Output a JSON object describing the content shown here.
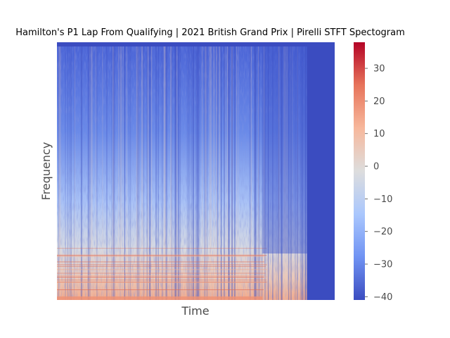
{
  "chart_data": {
    "type": "heatmap",
    "title": "Hamilton's P1 Lap From Qualifying | 2021 British Grand Prix | Pirelli STFT Spectogram",
    "xlabel": "Time",
    "ylabel": "Frequency",
    "x_ticks_shown": false,
    "y_ticks_shown": false,
    "grid": false,
    "colormap": "coolwarm",
    "colorbar": {
      "range": [
        -41,
        38
      ],
      "ticks": [
        38,
        30,
        20,
        10,
        0,
        -10,
        -20,
        -30,
        -40
      ],
      "tick_labels": [
        "",
        "30",
        "20",
        "10",
        "0",
        "−10",
        "−20",
        "−30",
        "−40"
      ],
      "colors": [
        "#3b4cc0",
        "#7093f3",
        "#aac7fd",
        "#dddddd",
        "#f7b89c",
        "#e7745b",
        "#b40426"
      ]
    },
    "signal_end_fraction": 0.9,
    "padding_fill_value": -41,
    "quiet_band_time_fraction": [
      0.74,
      0.9
    ],
    "trend": "higher power (warmer colors) at low frequencies, falling toward about -30 at high frequencies; top row at minimum value"
  }
}
